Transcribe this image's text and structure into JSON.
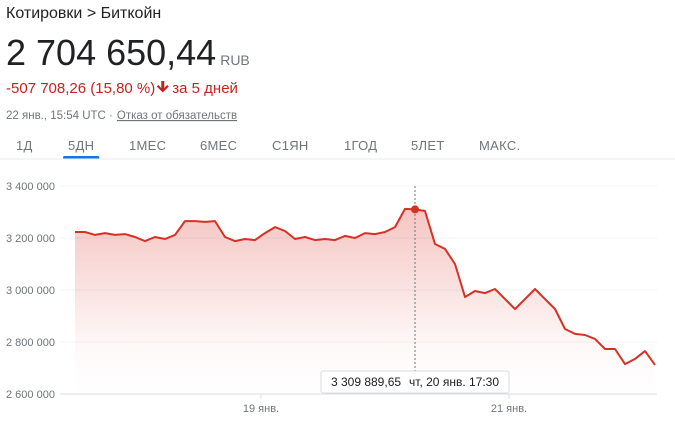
{
  "header": {
    "breadcrumb": "Котировки > Биткойн",
    "price": "2 704 650,44",
    "currency": "RUB",
    "change": "-507 708,26 (15,80 %)",
    "period": "за 5 дней",
    "timestamp": "22 янв., 15:54 UTC ·",
    "disclaimer": "Отказ от обязательств"
  },
  "tabs": {
    "items": [
      "1Д",
      "5ДН",
      "1МЕС",
      "6МЕС",
      "С1ЯН",
      "1ГОД",
      "5ЛЕТ",
      "МАКС."
    ],
    "selected": "5ДН"
  },
  "chart_data": {
    "type": "line",
    "x": [
      0,
      1,
      2,
      3,
      4,
      5,
      6,
      7,
      8,
      9,
      10,
      11,
      12,
      13,
      14,
      15,
      16,
      17,
      18,
      19,
      20,
      21,
      22,
      23,
      24,
      25,
      26,
      27,
      28,
      29,
      30,
      31,
      32,
      33,
      34,
      35,
      36,
      37,
      38,
      39,
      40,
      41,
      42,
      43,
      44,
      45,
      46,
      47,
      48,
      49,
      50,
      51,
      52,
      53,
      54,
      55,
      56,
      57,
      58
    ],
    "series": [
      {
        "name": "Биткойн",
        "color": "#d93025",
        "values": [
          3223000,
          3223000,
          3212000,
          3219000,
          3212000,
          3215000,
          3204000,
          3188000,
          3204000,
          3196000,
          3212000,
          3265000,
          3265000,
          3262000,
          3265000,
          3204000,
          3188000,
          3196000,
          3192000,
          3219000,
          3242000,
          3227000,
          3196000,
          3204000,
          3192000,
          3196000,
          3192000,
          3208000,
          3200000,
          3219000,
          3215000,
          3223000,
          3242000,
          3312000,
          3309889.65,
          3304000,
          3177000,
          3158000,
          3100000,
          2973000,
          2996000,
          2988000,
          3004000,
          2965000,
          2927000,
          2965000,
          3004000,
          2965000,
          2927000,
          2850000,
          2831000,
          2827000,
          2812000,
          2773000,
          2773000,
          2715000,
          2735000,
          2765000,
          2712000
        ],
        "value_labels": [
          null,
          null,
          null,
          null,
          null,
          null,
          null,
          null,
          null,
          null,
          null,
          null,
          null,
          null,
          null,
          null,
          null,
          null,
          null,
          null,
          null,
          null,
          null,
          null,
          null,
          null,
          null,
          null,
          null,
          null,
          null,
          null,
          null,
          null,
          "3 309 889,65",
          null,
          null,
          null,
          null,
          null,
          null,
          null,
          null,
          null,
          null,
          null,
          null,
          null,
          null,
          null,
          null,
          null,
          null,
          null,
          null,
          null,
          null,
          null,
          null
        ]
      }
    ],
    "tooltip_time": "чт, 20 янв. 17:30",
    "xlim": [
      -1.5,
      58.2
    ],
    "xticks": [
      {
        "value": 18.6,
        "label": "19 янв."
      },
      {
        "value": 43.4,
        "label": "21 янв."
      }
    ],
    "ylim": [
      2600000,
      3400000
    ],
    "yticks": [
      {
        "value": 2600000,
        "label": "2 600 000"
      },
      {
        "value": 2800000,
        "label": "2 800 000"
      },
      {
        "value": 3000000,
        "label": "3 000 000"
      },
      {
        "value": 3200000,
        "label": "3 200 000"
      },
      {
        "value": 3400000,
        "label": "3 400 000"
      }
    ],
    "grid": true
  }
}
